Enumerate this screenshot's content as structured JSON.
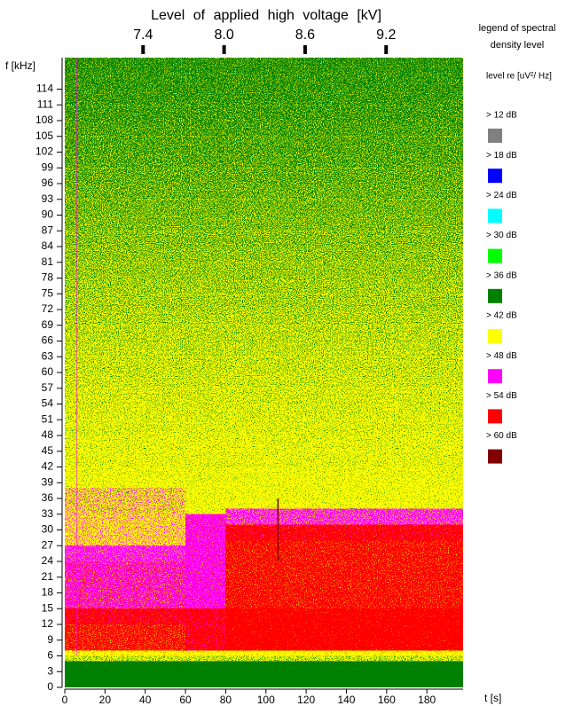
{
  "chart_data": {
    "type": "spectrogram",
    "title": "Level of applied high voltage [kV]",
    "xlabel": "t [s]",
    "ylabel": "f [kHz]",
    "xlim": [
      0,
      198
    ],
    "xticks": [
      0,
      20,
      40,
      60,
      80,
      100,
      120,
      140,
      160,
      180
    ],
    "ylim": [
      0,
      120
    ],
    "yticks": [
      0,
      3,
      6,
      9,
      12,
      15,
      18,
      21,
      24,
      27,
      30,
      33,
      36,
      39,
      42,
      45,
      48,
      51,
      54,
      57,
      60,
      63,
      66,
      69,
      72,
      75,
      78,
      81,
      84,
      87,
      90,
      93,
      96,
      99,
      102,
      105,
      108,
      111,
      114
    ],
    "x2lim": [
      6.82,
      9.77
    ],
    "x2ticks": [
      7.4,
      {
        "value": 8.0,
        "label": "8.0"
      },
      8.6,
      9.2
    ],
    "legend_title": [
      "legend of spectral",
      "density level"
    ],
    "legend_unit": "level re [uV²/ Hz]",
    "levels": [
      {
        "label": "> 12 dB",
        "color": "#808080"
      },
      {
        "label": "> 18 dB",
        "color": "#0000ff"
      },
      {
        "label": "> 24 dB",
        "color": "#00ffff"
      },
      {
        "label": "> 30 dB",
        "color": "#00ff00"
      },
      {
        "label": "> 36 dB",
        "color": "#008000"
      },
      {
        "label": "> 42 dB",
        "color": "#ffff00"
      },
      {
        "label": "> 48 dB",
        "color": "#ff00ff"
      },
      {
        "label": "> 54 dB",
        "color": "#ff0000"
      },
      {
        "label": "> 60 dB",
        "color": "#800000"
      }
    ]
  }
}
